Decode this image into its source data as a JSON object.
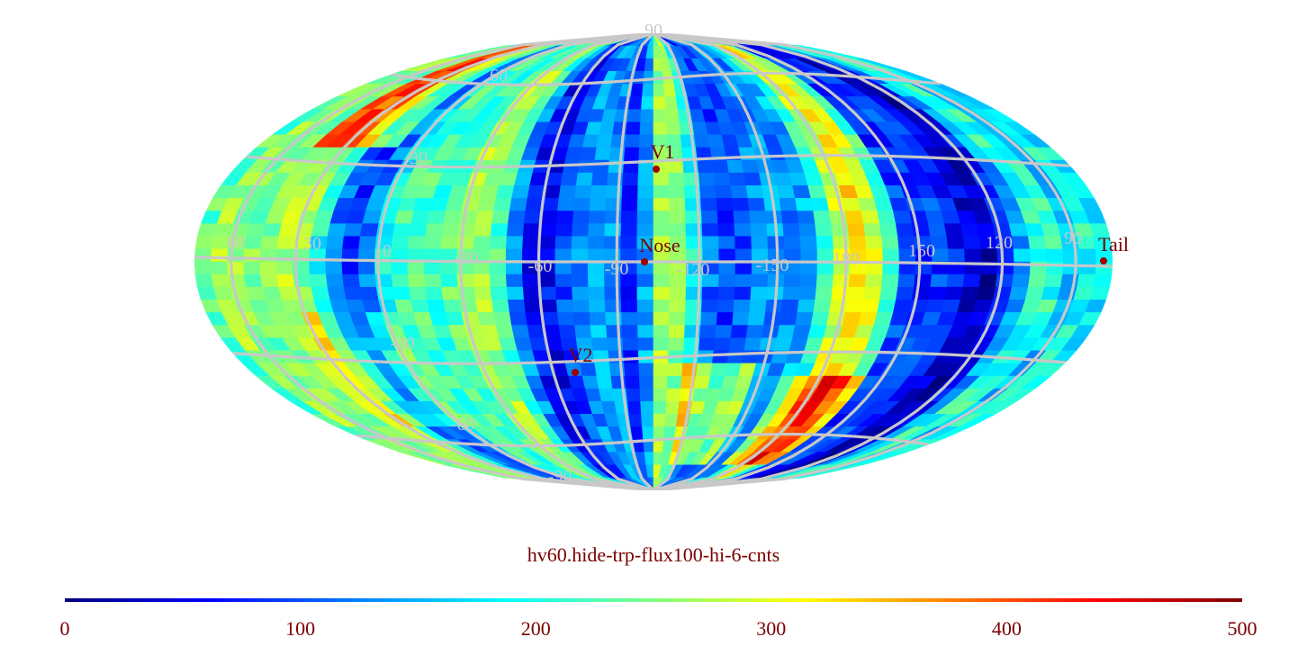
{
  "title": "hv60.hide-trp-flux100-hi-6-cnts",
  "colorbar": {
    "min": 0,
    "max": 500,
    "tick_labels": [
      "0",
      "100",
      "200",
      "300",
      "400",
      "500"
    ],
    "colormap": [
      "#00007f",
      "#0000ff",
      "#0080ff",
      "#00ffff",
      "#80ff80",
      "#ffff00",
      "#ff8000",
      "#ff0000",
      "#7f0000"
    ]
  },
  "grid": {
    "color": "#c8c8c8",
    "meridian_labels": [
      "60",
      "30",
      "0",
      "-30",
      "-60",
      "-90",
      "-120",
      "-150",
      "180",
      "150",
      "120",
      "90"
    ],
    "parallel_labels": [
      "90",
      "60",
      "30",
      "-30",
      "-60",
      "-90"
    ]
  },
  "markers": [
    {
      "label": "V1"
    },
    {
      "label": "Nose"
    },
    {
      "label": "V2"
    },
    {
      "label": "Tail"
    }
  ]
}
